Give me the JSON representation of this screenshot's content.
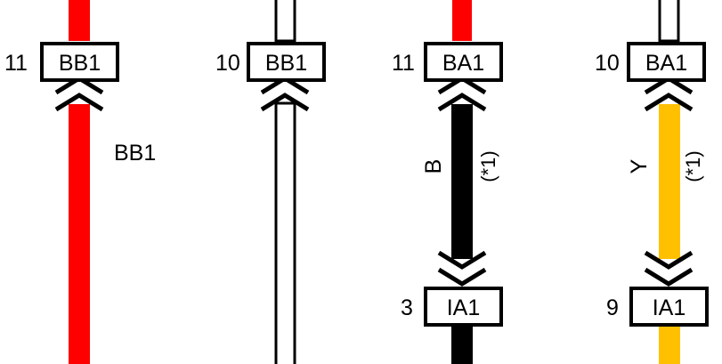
{
  "colors": {
    "red": "#ff0000",
    "black": "#000000",
    "yellow": "#ffc000",
    "white": "#ffffff"
  },
  "wire_labels": {
    "bb1_side_label": "BB1",
    "col3_color_code": "B",
    "col3_note": "(*1)",
    "col4_color_code": "Y",
    "col4_note": "(*1)"
  },
  "connectors": {
    "c1": {
      "pin": "11",
      "name": "BB1"
    },
    "c2": {
      "pin": "10",
      "name": "BB1"
    },
    "c3": {
      "pin": "11",
      "name": "BA1"
    },
    "c4": {
      "pin": "10",
      "name": "BA1"
    },
    "c5": {
      "pin": "3",
      "name": "IA1"
    },
    "c6": {
      "pin": "9",
      "name": "IA1"
    }
  }
}
